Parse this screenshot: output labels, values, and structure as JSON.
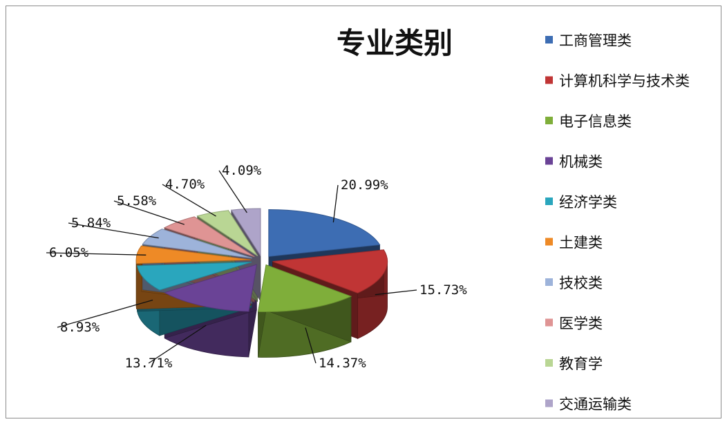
{
  "chart_data": {
    "type": "pie",
    "title": "专业类别",
    "legend_position": "right",
    "categories": [
      "工商管理类",
      "计算机科学与技术类",
      "电子信息类",
      "机械类",
      "经济学类",
      "土建类",
      "技校类",
      "医学类",
      "教育学",
      "交通运输类"
    ],
    "values": [
      20.99,
      15.73,
      14.37,
      13.71,
      8.93,
      6.05,
      5.84,
      5.58,
      4.7,
      4.09
    ],
    "labels": [
      "20.99%",
      "15.73%",
      "14.37%",
      "13.71%",
      "8.93%",
      "6.05%",
      "5.84%",
      "5.58%",
      "4.70%",
      "4.09%"
    ],
    "colors": [
      "#3d6db3",
      "#c03535",
      "#7fae3a",
      "#6a4396",
      "#2aa6bd",
      "#ee8a26",
      "#9db3da",
      "#df9494",
      "#b9d694",
      "#aea4c9"
    ],
    "exploded": true,
    "three_d": true
  }
}
